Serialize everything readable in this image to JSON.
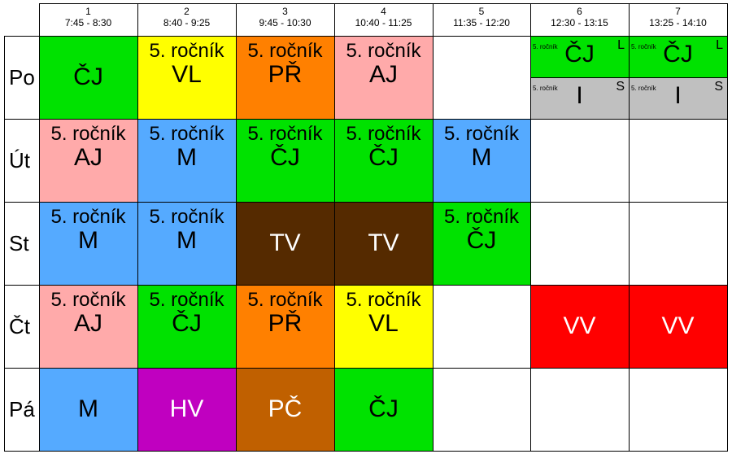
{
  "header": {
    "periods": [
      {
        "number": "1",
        "time": "7:45 - 8:30"
      },
      {
        "number": "2",
        "time": "8:40 - 9:25"
      },
      {
        "number": "3",
        "time": "9:45 - 10:30"
      },
      {
        "number": "4",
        "time": "10:40 - 11:25"
      },
      {
        "number": "5",
        "time": "11:35 - 12:20"
      },
      {
        "number": "6",
        "time": "12:30 - 13:15"
      },
      {
        "number": "7",
        "time": "13:25 - 14:10"
      }
    ]
  },
  "days": [
    "Po",
    "Út",
    "St",
    "Čt",
    "Pá"
  ],
  "colors": {
    "green": "#00e200",
    "yellow": "#ffff00",
    "orange": "#ff8000",
    "pink": "#ffaaaa",
    "blue": "#55aaff",
    "brown": "#552a00",
    "purple": "#c000c0",
    "tan": "#c06000",
    "red": "#ff0000",
    "gray": "#c0c0c0"
  },
  "schedule": {
    "po": {
      "p1": {
        "grade": "",
        "subject": "ČJ"
      },
      "p2": {
        "grade": "5. ročník",
        "subject": "VL"
      },
      "p3": {
        "grade": "5. ročník",
        "subject": "PŘ"
      },
      "p4": {
        "grade": "5. ročník",
        "subject": "AJ"
      },
      "p6_top": {
        "grade": "5. ročník",
        "subject": "ČJ",
        "group": "L"
      },
      "p6_bottom": {
        "grade": "5. ročník",
        "subject": "I",
        "group": "S"
      },
      "p7_top": {
        "grade": "5. ročník",
        "subject": "ČJ",
        "group": "L"
      },
      "p7_bottom": {
        "grade": "5. ročník",
        "subject": "I",
        "group": "S"
      }
    },
    "ut": {
      "p1": {
        "grade": "5. ročník",
        "subject": "AJ"
      },
      "p2": {
        "grade": "5. ročník",
        "subject": "M"
      },
      "p3": {
        "grade": "5. ročník",
        "subject": "ČJ"
      },
      "p4": {
        "grade": "5. ročník",
        "subject": "ČJ"
      },
      "p5": {
        "grade": "5. ročník",
        "subject": "M"
      }
    },
    "st": {
      "p1": {
        "grade": "5. ročník",
        "subject": "M"
      },
      "p2": {
        "grade": "5. ročník",
        "subject": "M"
      },
      "p3": {
        "grade": "",
        "subject": "TV"
      },
      "p4": {
        "grade": "",
        "subject": "TV"
      },
      "p5": {
        "grade": "5. ročník",
        "subject": "ČJ"
      }
    },
    "ct": {
      "p1": {
        "grade": "5. ročník",
        "subject": "AJ"
      },
      "p2": {
        "grade": "5. ročník",
        "subject": "ČJ"
      },
      "p3": {
        "grade": "5. ročník",
        "subject": "PŘ"
      },
      "p4": {
        "grade": "5. ročník",
        "subject": "VL"
      },
      "p6": {
        "grade": "",
        "subject": "VV"
      },
      "p7": {
        "grade": "",
        "subject": "VV"
      }
    },
    "pa": {
      "p1": {
        "grade": "",
        "subject": "M"
      },
      "p2": {
        "grade": "",
        "subject": "HV"
      },
      "p3": {
        "grade": "",
        "subject": "PČ"
      },
      "p4": {
        "grade": "",
        "subject": "ČJ"
      }
    }
  }
}
